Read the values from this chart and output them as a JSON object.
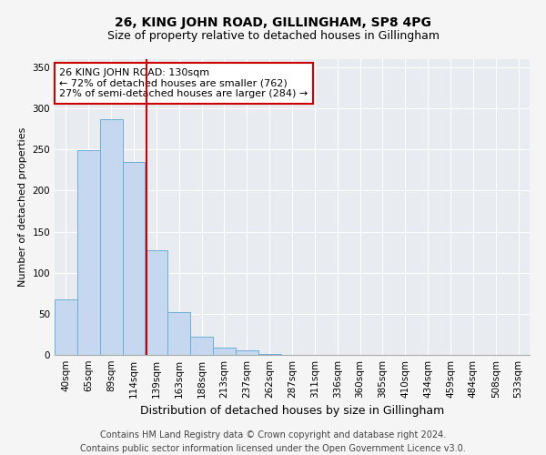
{
  "title": "26, KING JOHN ROAD, GILLINGHAM, SP8 4PG",
  "subtitle": "Size of property relative to detached houses in Gillingham",
  "xlabel": "Distribution of detached houses by size in Gillingham",
  "ylabel": "Number of detached properties",
  "categories": [
    "40sqm",
    "65sqm",
    "89sqm",
    "114sqm",
    "139sqm",
    "163sqm",
    "188sqm",
    "213sqm",
    "237sqm",
    "262sqm",
    "287sqm",
    "311sqm",
    "336sqm",
    "360sqm",
    "385sqm",
    "410sqm",
    "434sqm",
    "459sqm",
    "484sqm",
    "508sqm",
    "533sqm"
  ],
  "values": [
    68,
    249,
    287,
    235,
    127,
    52,
    22,
    9,
    5,
    1,
    0,
    0,
    0,
    0,
    0,
    0,
    0,
    0,
    0,
    0,
    0
  ],
  "bar_color": "#c5d8ef",
  "bar_edge_color": "#6baed6",
  "background_color": "#e8ecf0",
  "grid_color": "#ffffff",
  "annotation_line1": "26 KING JOHN ROAD: 130sqm",
  "annotation_line2": "← 72% of detached houses are smaller (762)",
  "annotation_line3": "27% of semi-detached houses are larger (284) →",
  "vline_x": 3.58,
  "vline_color": "#cc0000",
  "annotation_box_color": "#ffffff",
  "annotation_box_edge": "#cc0000",
  "footer_line1": "Contains HM Land Registry data © Crown copyright and database right 2024.",
  "footer_line2": "Contains public sector information licensed under the Open Government Licence v3.0.",
  "ylim": [
    0,
    360
  ],
  "yticks": [
    0,
    50,
    100,
    150,
    200,
    250,
    300,
    350
  ],
  "title_fontsize": 10,
  "subtitle_fontsize": 9,
  "xlabel_fontsize": 9,
  "ylabel_fontsize": 8,
  "tick_fontsize": 7.5,
  "annotation_fontsize": 8,
  "footer_fontsize": 7
}
